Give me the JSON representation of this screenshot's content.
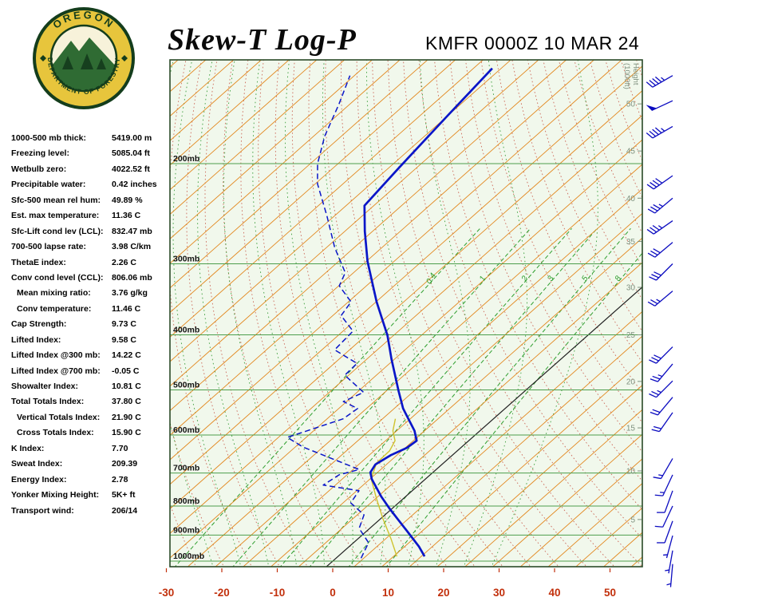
{
  "header": {
    "title": "Skew-T Log-P",
    "station_line": "KMFR 0000Z 10 MAR 24",
    "logo_top": "OREGON",
    "logo_bottom": "DEPARTMENT OF FORESTRY"
  },
  "indices": {
    "rows": [
      {
        "label": "1000-500 mb thick:",
        "value": "5419.00 m",
        "indent": false
      },
      {
        "label": "Freezing level:",
        "value": "5085.04 ft",
        "indent": false
      },
      {
        "label": "Wetbulb zero:",
        "value": "4022.52 ft",
        "indent": false
      },
      {
        "label": "Precipitable water:",
        "value": "0.42 inches",
        "indent": false
      },
      {
        "label": "Sfc-500 mean rel hum:",
        "value": "49.89 %",
        "indent": false
      },
      {
        "label": "Est. max temperature:",
        "value": "11.36 C",
        "indent": false
      },
      {
        "label": "Sfc-Lift cond lev (LCL):",
        "value": "832.47 mb",
        "indent": false
      },
      {
        "label": "700-500 lapse rate:",
        "value": "3.98 C/km",
        "indent": false
      },
      {
        "label": "ThetaE index:",
        "value": "2.26 C",
        "indent": false
      },
      {
        "label": "Conv cond level (CCL):",
        "value": "806.06 mb",
        "indent": false
      },
      {
        "label": "Mean mixing ratio:",
        "value": "3.76 g/kg",
        "indent": true
      },
      {
        "label": "Conv temperature:",
        "value": "11.46 C",
        "indent": true
      },
      {
        "label": "Cap Strength:",
        "value": "9.73 C",
        "indent": false
      },
      {
        "label": "Lifted Index:",
        "value": "9.58 C",
        "indent": false
      },
      {
        "label": "Lifted Index @300 mb:",
        "value": "14.22 C",
        "indent": false
      },
      {
        "label": "Lifted Index @700 mb:",
        "value": "-0.05 C",
        "indent": false
      },
      {
        "label": "Showalter Index:",
        "value": "10.81 C",
        "indent": false
      },
      {
        "label": "Total Totals Index:",
        "value": "37.80 C",
        "indent": false
      },
      {
        "label": "Vertical Totals Index:",
        "value": "21.90 C",
        "indent": true
      },
      {
        "label": "Cross Totals Index:",
        "value": "15.90 C",
        "indent": true
      },
      {
        "label": "K Index:",
        "value": "7.70",
        "indent": false
      },
      {
        "label": "Sweat Index:",
        "value": "209.39",
        "indent": false
      },
      {
        "label": "Energy Index:",
        "value": "2.78",
        "indent": false
      },
      {
        "label": "Yonker Mixing Height:",
        "value": "5K+ ft",
        "indent": false
      },
      {
        "label": "Transport wind:",
        "value": "206/14",
        "indent": false
      }
    ]
  },
  "chart_data": {
    "type": "skewt-log-p",
    "x_axis": {
      "unit": "C",
      "ticks": [
        -30,
        -20,
        -10,
        0,
        10,
        20,
        30,
        40,
        50
      ]
    },
    "pressure_unit": "mb",
    "pressure_levels": [
      200,
      300,
      400,
      500,
      600,
      700,
      800,
      900,
      1000
    ],
    "height_axis": {
      "title_line1": "Height",
      "title_line2": "(1000ft)",
      "labels": [
        {
          "kft": 50,
          "p": 157
        },
        {
          "kft": 45,
          "p": 190
        },
        {
          "kft": 40,
          "p": 230
        },
        {
          "kft": 35,
          "p": 274
        },
        {
          "kft": 30,
          "p": 330
        },
        {
          "kft": 25,
          "p": 400
        },
        {
          "kft": 20,
          "p": 483
        },
        {
          "kft": 15,
          "p": 583
        },
        {
          "kft": 10,
          "p": 694
        },
        {
          "kft": 5,
          "p": 845
        }
      ]
    },
    "grid": {
      "isotherm_range_c": [
        -130,
        55,
        5
      ],
      "dry_adiabat_theta_k": [
        243,
        408,
        5
      ],
      "moist_adiabat_start_c": [
        -20,
        30,
        5
      ]
    },
    "mixing_ratio_lines": [
      0.4,
      1,
      2,
      3,
      5,
      8
    ],
    "temperature_profile": [
      [
        981,
        15.6
      ],
      [
        943,
        12.6
      ],
      [
        893,
        8.0
      ],
      [
        842,
        3.0
      ],
      [
        808,
        -0.5
      ],
      [
        770,
        -4.4
      ],
      [
        717,
        -9.7
      ],
      [
        698,
        -11.3
      ],
      [
        676,
        -12.0
      ],
      [
        651,
        -11.1
      ],
      [
        632,
        -9.7
      ],
      [
        614,
        -9.4
      ],
      [
        590,
        -11.8
      ],
      [
        539,
        -18.4
      ],
      [
        502,
        -22.8
      ],
      [
        441,
        -30.6
      ],
      [
        401,
        -36.1
      ],
      [
        350,
        -44.9
      ],
      [
        297,
        -54.8
      ],
      [
        263,
        -61.4
      ],
      [
        237,
        -66.7
      ],
      [
        203,
        -68.2
      ],
      [
        165,
        -70.0
      ],
      [
        136,
        -71.6
      ]
    ],
    "dewpoint_profile": [
      [
        988,
        4.5
      ],
      [
        928,
        2.7
      ],
      [
        876,
        -1.9
      ],
      [
        829,
        -3.8
      ],
      [
        790,
        -8.6
      ],
      [
        752,
        -9.6
      ],
      [
        735,
        -17.2
      ],
      [
        705,
        -16.4
      ],
      [
        690,
        -13.9
      ],
      [
        630,
        -28.6
      ],
      [
        606,
        -33.4
      ],
      [
        562,
        -27.1
      ],
      [
        539,
        -26.6
      ],
      [
        524,
        -30.6
      ],
      [
        505,
        -28.8
      ],
      [
        471,
        -35.7
      ],
      [
        449,
        -35.9
      ],
      [
        425,
        -42.7
      ],
      [
        394,
        -43.2
      ],
      [
        370,
        -48.5
      ],
      [
        350,
        -49.5
      ],
      [
        328,
        -54.9
      ],
      [
        311,
        -56.5
      ],
      [
        281,
        -63.5
      ],
      [
        247,
        -71.4
      ],
      [
        217,
        -79.6
      ],
      [
        200,
        -83.7
      ],
      [
        179,
        -88.0
      ],
      [
        157,
        -92.0
      ],
      [
        140,
        -95.8
      ]
    ],
    "wetbulb_profile": [
      [
        981,
        10.6
      ],
      [
        914,
        6.0
      ],
      [
        842,
        0.4
      ],
      [
        777,
        -4.8
      ],
      [
        717,
        -9.8
      ],
      [
        672,
        -12.1
      ],
      [
        640,
        -12.2
      ],
      [
        614,
        -13.3
      ],
      [
        590,
        -15.7
      ],
      [
        562,
        -17.7
      ]
    ],
    "winds": [
      {
        "p": 140,
        "dir": 240,
        "spd": 45
      },
      {
        "p": 155,
        "dir": 245,
        "spd": 50
      },
      {
        "p": 172,
        "dir": 240,
        "spd": 45
      },
      {
        "p": 210,
        "dir": 235,
        "spd": 40
      },
      {
        "p": 230,
        "dir": 230,
        "spd": 35
      },
      {
        "p": 252,
        "dir": 235,
        "spd": 35
      },
      {
        "p": 275,
        "dir": 230,
        "spd": 30
      },
      {
        "p": 300,
        "dir": 225,
        "spd": 30
      },
      {
        "p": 335,
        "dir": 230,
        "spd": 25
      },
      {
        "p": 420,
        "dir": 225,
        "spd": 30
      },
      {
        "p": 450,
        "dir": 220,
        "spd": 25
      },
      {
        "p": 482,
        "dir": 225,
        "spd": 25
      },
      {
        "p": 515,
        "dir": 220,
        "spd": 20
      },
      {
        "p": 548,
        "dir": 215,
        "spd": 20
      },
      {
        "p": 660,
        "dir": 210,
        "spd": 15
      },
      {
        "p": 705,
        "dir": 205,
        "spd": 15
      },
      {
        "p": 752,
        "dir": 200,
        "spd": 10
      },
      {
        "p": 800,
        "dir": 205,
        "spd": 10
      },
      {
        "p": 850,
        "dir": 200,
        "spd": 10
      },
      {
        "p": 902,
        "dir": 195,
        "spd": 5
      },
      {
        "p": 958,
        "dir": 190,
        "spd": 5
      },
      {
        "p": 1012,
        "dir": 185,
        "spd": 5
      }
    ],
    "colors": {
      "plot_bg": "#f1f8ec",
      "frame": "#2a4a28",
      "isotherm": "#e2861c",
      "zero_isotherm": "#222222",
      "dry_adiabat": "#cc6a5a",
      "moist_adiabat": "#3c9e3c",
      "mixing_ratio": "#2e9e2e",
      "pressure_line": "#4d9e4d",
      "pressure_label": "#111111",
      "temperature": "#0a16c8",
      "dewpoint": "#0a16c8",
      "wetbulb": "#cfc32e",
      "wind": "#0b0bc0",
      "x_label": "#c2300c",
      "height_label": "#7f917f"
    }
  }
}
